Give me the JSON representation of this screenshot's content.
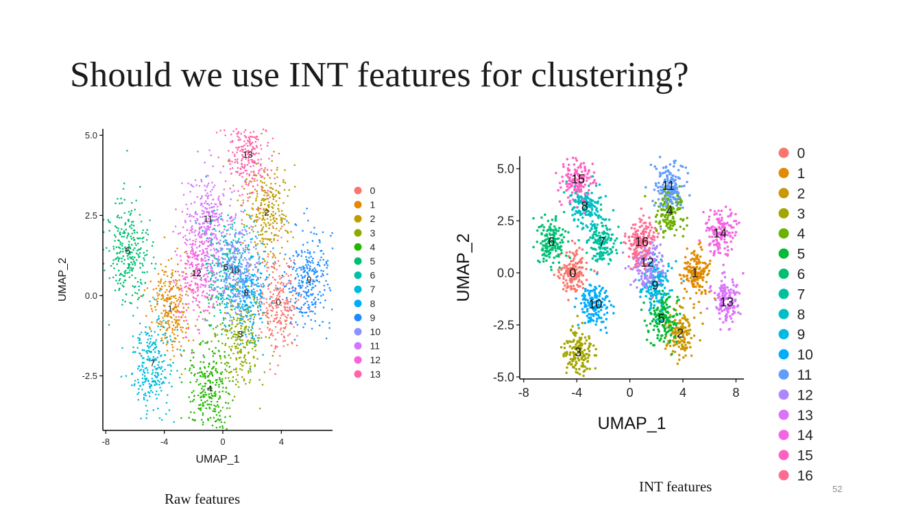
{
  "slide": {
    "title": "Should we use INT features for clustering?",
    "caption_left": "Raw features",
    "caption_right": "INT features",
    "page_number": "52"
  },
  "chart_data": [
    {
      "type": "scatter",
      "title": "",
      "xlabel": "UMAP_1",
      "ylabel": "UMAP_2",
      "xlim": [
        -8.2,
        7.5
      ],
      "ylim": [
        -4.2,
        5.2
      ],
      "xticks": [
        "-8",
        "-4",
        "0",
        "4"
      ],
      "yticks": [
        "-2.5",
        "0.0",
        "2.5",
        "5.0"
      ],
      "legend_position": "right",
      "series": [
        {
          "name": "0",
          "color": "#F8766D",
          "center": [
            3.8,
            -0.2
          ]
        },
        {
          "name": "1",
          "color": "#E18A00",
          "center": [
            -3.6,
            -0.4
          ]
        },
        {
          "name": "2",
          "color": "#BE9C00",
          "center": [
            3.0,
            2.6
          ]
        },
        {
          "name": "3",
          "color": "#8CAB00",
          "center": [
            1.2,
            -1.2
          ]
        },
        {
          "name": "4",
          "color": "#24B700",
          "center": [
            -0.9,
            -2.9
          ]
        },
        {
          "name": "5",
          "color": "#00BE70",
          "center": [
            -6.5,
            1.4
          ]
        },
        {
          "name": "6",
          "color": "#00C1AB",
          "center": [
            0.2,
            0.9
          ]
        },
        {
          "name": "7",
          "color": "#00BBDA",
          "center": [
            -4.8,
            -2.1
          ]
        },
        {
          "name": "8",
          "color": "#00ACFC",
          "center": [
            1.6,
            0.1
          ]
        },
        {
          "name": "9",
          "color": "#1C8BFF",
          "center": [
            5.9,
            0.5
          ]
        },
        {
          "name": "10",
          "color": "#8B93FF",
          "center": [
            0.8,
            0.8
          ]
        },
        {
          "name": "11",
          "color": "#D575FE",
          "center": [
            -1.0,
            2.4
          ]
        },
        {
          "name": "12",
          "color": "#F962DD",
          "center": [
            -1.8,
            0.7
          ]
        },
        {
          "name": "13",
          "color": "#FF65AC",
          "center": [
            1.7,
            4.4
          ]
        }
      ]
    },
    {
      "type": "scatter",
      "title": "",
      "xlabel": "UMAP_1",
      "ylabel": "UMAP_2",
      "xlim": [
        -8.3,
        8.6
      ],
      "ylim": [
        -5.1,
        5.6
      ],
      "xticks": [
        "-8",
        "-4",
        "0",
        "4",
        "8"
      ],
      "yticks": [
        "-5.0",
        "-2.5",
        "0.0",
        "2.5",
        "5.0"
      ],
      "legend_position": "right",
      "series": [
        {
          "name": "0",
          "color": "#F8766D",
          "center": [
            -4.3,
            0.0
          ]
        },
        {
          "name": "1",
          "color": "#E18A00",
          "center": [
            4.9,
            0.0
          ]
        },
        {
          "name": "2",
          "color": "#C99800",
          "center": [
            3.8,
            -2.9
          ]
        },
        {
          "name": "3",
          "color": "#A3A500",
          "center": [
            -3.9,
            -3.8
          ]
        },
        {
          "name": "4",
          "color": "#6BB100",
          "center": [
            3.0,
            3.0
          ]
        },
        {
          "name": "5",
          "color": "#00BA38",
          "center": [
            2.4,
            -2.2
          ]
        },
        {
          "name": "6",
          "color": "#00BF74",
          "center": [
            -5.9,
            1.5
          ]
        },
        {
          "name": "7",
          "color": "#00C19F",
          "center": [
            -2.1,
            1.5
          ]
        },
        {
          "name": "8",
          "color": "#00BFC4",
          "center": [
            -3.4,
            3.2
          ]
        },
        {
          "name": "9",
          "color": "#00B9E3",
          "center": [
            1.9,
            -0.6
          ]
        },
        {
          "name": "10",
          "color": "#00ADFA",
          "center": [
            -2.6,
            -1.5
          ]
        },
        {
          "name": "11",
          "color": "#619CFF",
          "center": [
            2.9,
            4.2
          ]
        },
        {
          "name": "12",
          "color": "#AE87FF",
          "center": [
            1.3,
            0.5
          ]
        },
        {
          "name": "13",
          "color": "#DB72FB",
          "center": [
            7.3,
            -1.4
          ]
        },
        {
          "name": "14",
          "color": "#F564E3",
          "center": [
            6.8,
            1.9
          ]
        },
        {
          "name": "15",
          "color": "#FF61C3",
          "center": [
            -3.9,
            4.5
          ]
        },
        {
          "name": "16",
          "color": "#FF6C91",
          "center": [
            0.9,
            1.5
          ]
        }
      ],
      "legend_only": []
    }
  ]
}
